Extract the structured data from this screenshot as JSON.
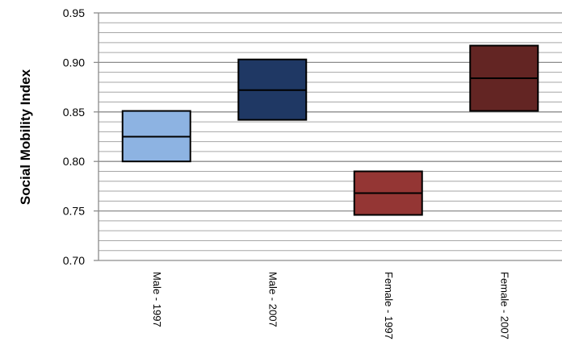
{
  "chart_data": {
    "type": "floating-bar",
    "title": "",
    "xlabel": "",
    "ylabel": "Social Mobility Index",
    "ylim": [
      0.7,
      0.95
    ],
    "yticks": [
      "0.70",
      "0.75",
      "0.80",
      "0.85",
      "0.90",
      "0.95"
    ],
    "minor_grid_step": 0.01,
    "grid": true,
    "categories": [
      "Male - 1997",
      "Male - 2007",
      "Female - 1997",
      "Female - 2007"
    ],
    "series": [
      {
        "low": [
          0.8,
          0.842,
          0.746,
          0.851
        ],
        "mid": [
          0.825,
          0.872,
          0.768,
          0.884
        ],
        "high": [
          0.851,
          0.903,
          0.79,
          0.917
        ],
        "colors": [
          "#8DB3E2",
          "#1F3864",
          "#943634",
          "#632523"
        ]
      }
    ]
  }
}
